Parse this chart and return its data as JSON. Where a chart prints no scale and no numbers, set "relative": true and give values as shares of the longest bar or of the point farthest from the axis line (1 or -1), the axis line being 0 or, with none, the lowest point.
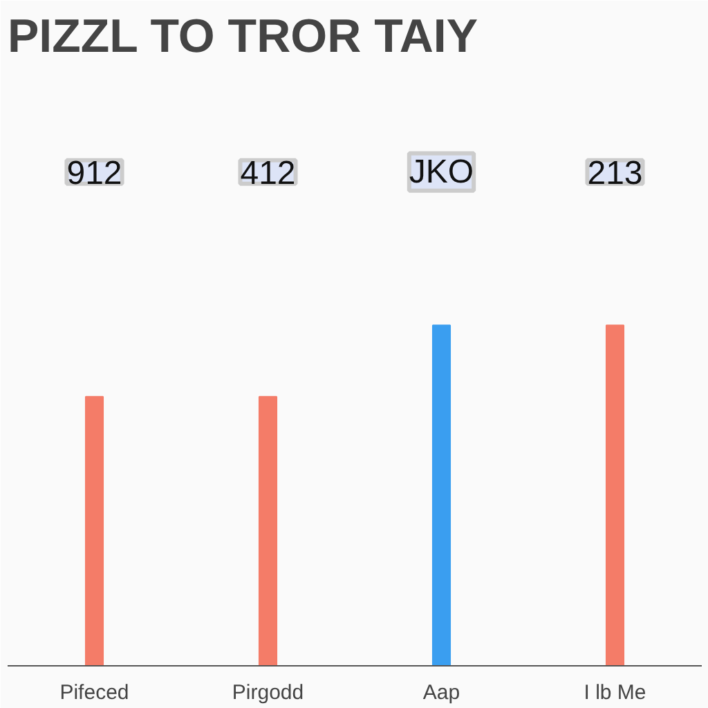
{
  "chart_data": {
    "type": "bar",
    "title": "PIZZL TO TROR TAIY",
    "categories": [
      "Pifeced",
      "Pirgodd",
      "Aap",
      "I lb Me"
    ],
    "values": [
      0.79,
      0.79,
      1,
      1
    ],
    "colors": [
      "#f47c68",
      "#f47c68",
      "#3a9ef0",
      "#f47c68"
    ],
    "relative": true,
    "annotations": [
      "912",
      "412",
      "JKO",
      "213"
    ]
  }
}
